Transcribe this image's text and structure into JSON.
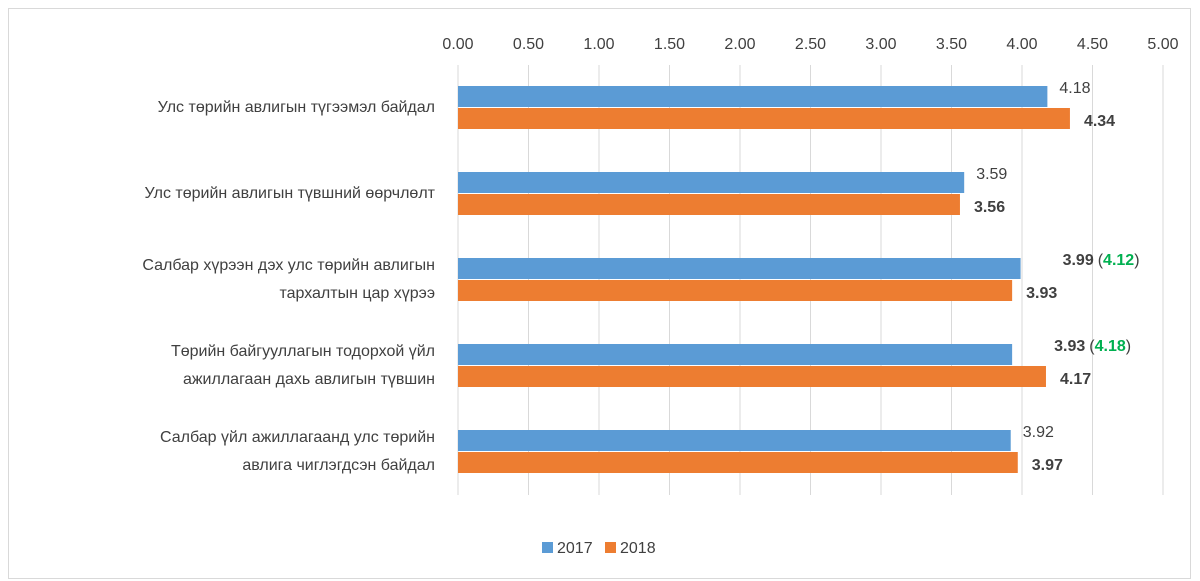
{
  "chart_data": {
    "type": "hbar",
    "categories": [
      [
        "Улс төрийн авлигын түгээмэл байдал"
      ],
      [
        "Улс төрийн авлигын түвшний өөрчлөлт"
      ],
      [
        "Салбар хүрээн дэх улс төрийн авлигын",
        "тархалтын цар хүрээ"
      ],
      [
        "Төрийн байгууллагын тодорхой үйл",
        "ажиллагаан дахь авлигын түвшин"
      ],
      [
        "Салбар үйл ажиллагаанд улс төрийн",
        "авлига чиглэгдсэн байдал"
      ]
    ],
    "series": [
      {
        "name": "2017",
        "color": "#5b9bd5",
        "values": [
          4.18,
          3.59,
          3.99,
          3.93,
          3.92
        ],
        "secondary_values": [
          null,
          null,
          4.12,
          4.18,
          null
        ],
        "secondary_color": "#00b050"
      },
      {
        "name": "2018",
        "color": "#ed7d31",
        "values": [
          4.34,
          3.56,
          3.93,
          4.17,
          3.97
        ]
      }
    ],
    "secondary_brackets": [
      "(",
      ")"
    ],
    "xlim": [
      0,
      5
    ],
    "xticks": [
      {
        "value": 0,
        "label": "0.00"
      },
      {
        "value": 0.5,
        "label": "0.50"
      },
      {
        "value": 1,
        "label": "1.00"
      },
      {
        "value": 1.5,
        "label": "1.50"
      },
      {
        "value": 2,
        "label": "2.00"
      },
      {
        "value": 2.5,
        "label": "2.50"
      },
      {
        "value": 3,
        "label": "3.00"
      },
      {
        "value": 3.5,
        "label": "3.50"
      },
      {
        "value": 4,
        "label": "4.00"
      },
      {
        "value": 4.5,
        "label": "4.50"
      },
      {
        "value": 5,
        "label": "5.00"
      }
    ],
    "grid": true,
    "legend": "bottom"
  }
}
